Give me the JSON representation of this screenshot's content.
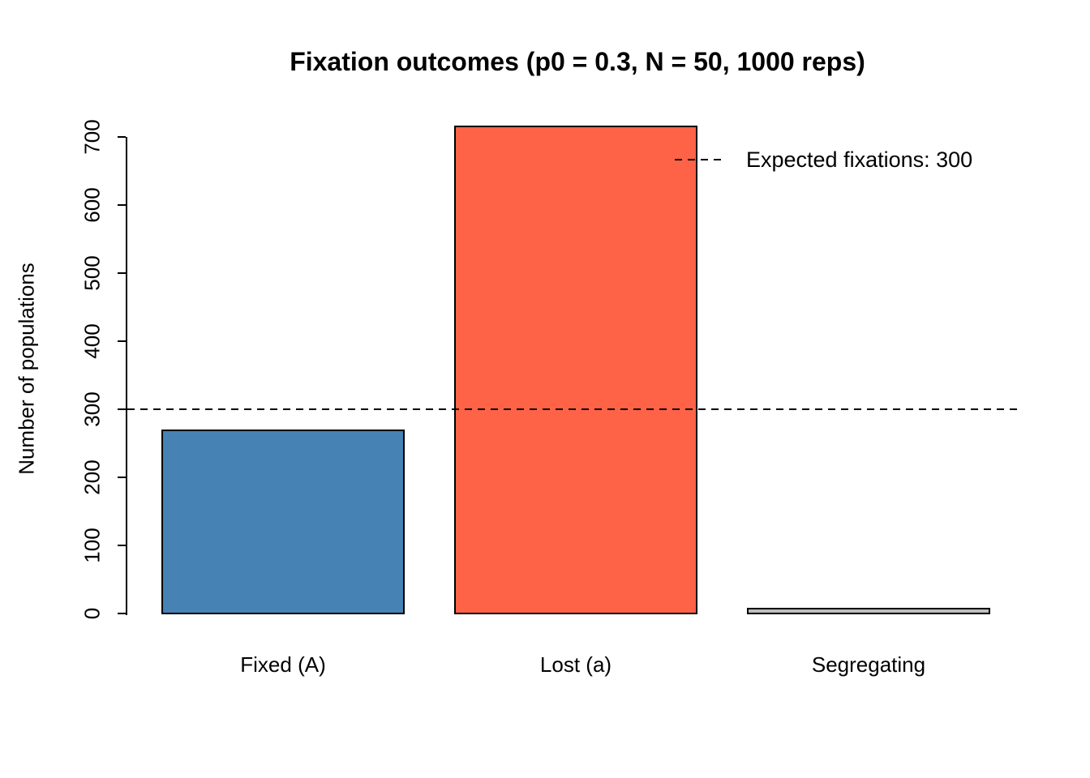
{
  "chart_data": {
    "type": "bar",
    "title": "Fixation outcomes (p0 = 0.3, N = 50, 1000 reps)",
    "categories": [
      "Fixed (A)",
      "Lost (a)",
      "Segregating"
    ],
    "values": [
      272,
      718,
      10
    ],
    "bar_colors": [
      "#4682B4",
      "#FF6347",
      "#BEBEBE"
    ],
    "bar_border_color": "#000000",
    "xlabel": "",
    "ylabel": "Number of populations",
    "ylim": [
      0,
      700
    ],
    "yticks": [
      0,
      100,
      200,
      300,
      400,
      500,
      600,
      700
    ],
    "grid": false,
    "background_color": "#FFFFFF",
    "reference_line": {
      "value": 300,
      "style": "dashed",
      "color": "#000000"
    },
    "legend": {
      "position": "top-right",
      "frame": false,
      "entries": [
        {
          "label": "Expected fixations: 300",
          "line_style": "dashed",
          "line_color": "#000000"
        }
      ]
    }
  }
}
